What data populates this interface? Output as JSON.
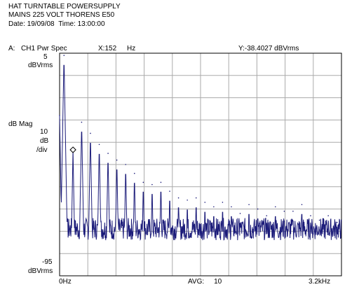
{
  "header": {
    "title_line1": "HAT TURNTABLE POWERSUPPLY",
    "title_line2": "MAINS 225 VOLT THORENS E50",
    "date_label": "Date:",
    "date": "19/09/08",
    "time_label": "Time:",
    "time": "13:00:00"
  },
  "trace": {
    "trace_label": "A:",
    "measurement": "CH1 Pwr Spec",
    "marker_x_label": "X:",
    "marker_x": "152",
    "marker_x_unit": "Hz",
    "marker_y_label": "Y:",
    "marker_y": "-38.4027",
    "marker_y_unit": "dBVrms"
  },
  "axis": {
    "top_value": "5",
    "top_unit": "dBVrms",
    "ylabel": "dB Mag",
    "scale_value": "10",
    "scale_unit": "dB",
    "scale_per": "/div",
    "bottom_value": "-95",
    "bottom_unit": "dBVrms",
    "x_start": "0Hz",
    "avg_label": "AVG:",
    "avg_value": "10",
    "x_end": "3.2kHz"
  },
  "colors": {
    "trace": "#1c1c7a",
    "grid": "#aaaaaa",
    "frame": "#000000"
  },
  "chart_data": {
    "type": "line",
    "title": "HAT TURNTABLE POWERSUPPLY",
    "xlabel": "",
    "ylabel": "dB Mag",
    "x_unit": "Hz",
    "y_unit": "dBVrms",
    "xlim": [
      0,
      3200
    ],
    "ylim": [
      -95,
      5
    ],
    "grid": true,
    "x_divisions": 10,
    "y_divisions": 10,
    "marker": {
      "x": 152,
      "y": -38.4027
    },
    "noise_floor": -75,
    "harmonic_spacing_hz": 100,
    "harmonic_peaks": [
      {
        "x": 0,
        "y": -23
      },
      {
        "x": 50,
        "y": 4
      },
      {
        "x": 152,
        "y": -38.4
      },
      {
        "x": 250,
        "y": -26
      },
      {
        "x": 350,
        "y": -31
      },
      {
        "x": 450,
        "y": -36
      },
      {
        "x": 550,
        "y": -40
      },
      {
        "x": 650,
        "y": -43
      },
      {
        "x": 750,
        "y": -45
      },
      {
        "x": 850,
        "y": -49
      },
      {
        "x": 950,
        "y": -53
      },
      {
        "x": 1050,
        "y": -54
      },
      {
        "x": 1150,
        "y": -53
      },
      {
        "x": 1250,
        "y": -57
      },
      {
        "x": 1350,
        "y": -60
      },
      {
        "x": 1450,
        "y": -61
      },
      {
        "x": 1550,
        "y": -60
      },
      {
        "x": 1650,
        "y": -62
      },
      {
        "x": 1750,
        "y": -64
      },
      {
        "x": 1850,
        "y": -62
      },
      {
        "x": 1950,
        "y": -64
      },
      {
        "x": 2050,
        "y": -67
      },
      {
        "x": 2150,
        "y": -63
      },
      {
        "x": 2250,
        "y": -65
      },
      {
        "x": 2350,
        "y": -68
      },
      {
        "x": 2450,
        "y": -64
      },
      {
        "x": 2550,
        "y": -66
      },
      {
        "x": 2650,
        "y": -66
      },
      {
        "x": 2750,
        "y": -63
      },
      {
        "x": 2850,
        "y": -68
      },
      {
        "x": 2950,
        "y": -70
      },
      {
        "x": 3050,
        "y": -68
      },
      {
        "x": 3150,
        "y": -71
      }
    ]
  }
}
